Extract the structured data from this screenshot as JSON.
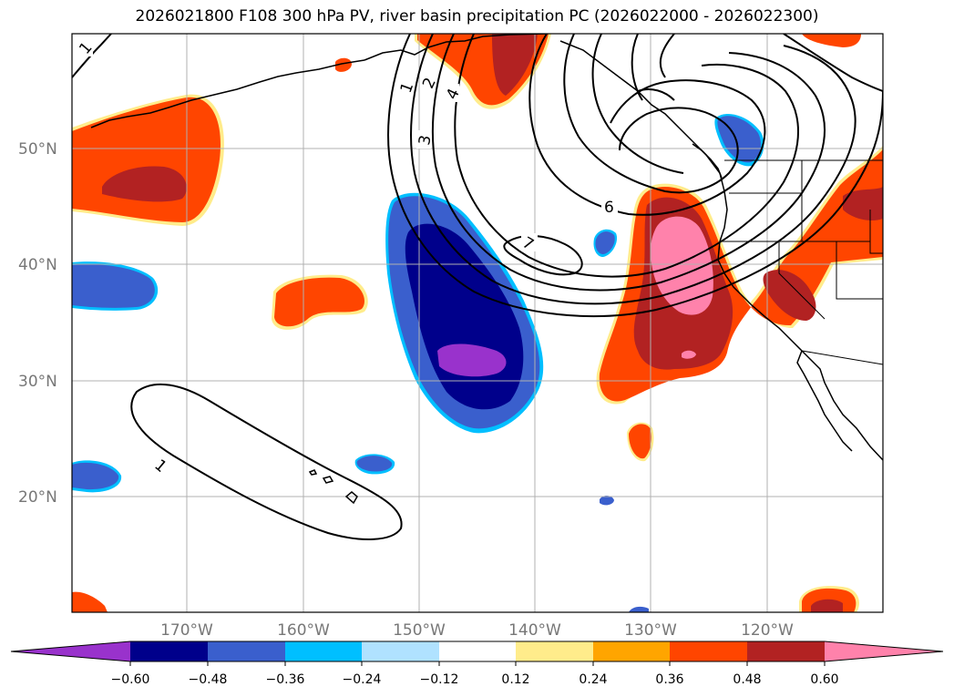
{
  "title": "2026021800 F108 300 hPa PV, river basin precipitation PC (2026022000 - 2026022300)",
  "colors": {
    "v_neg_4": "#9932cc",
    "v_neg_3": "#00008b",
    "v_neg_2": "#3a5fcd",
    "v_neg_1": "#00bfff",
    "v_neg_0": "#b0e2ff",
    "v_0": "#ffffff",
    "v_pos_0": "#ffec8b",
    "v_pos_1": "#ffa500",
    "v_pos_2": "#ff4500",
    "v_pos_3": "#b22222",
    "v_pos_4": "#ff82ab"
  },
  "map": {
    "lat_labels": [
      "50°N",
      "40°N",
      "30°N",
      "20°N"
    ],
    "lon_labels": [
      "170°W",
      "160°W",
      "150°W",
      "140°W",
      "130°W",
      "120°W"
    ],
    "contour_labels": [
      "1",
      "1",
      "1",
      "2",
      "3",
      "4",
      "6",
      "7"
    ]
  },
  "colorbar": {
    "ticks": [
      "−0.60",
      "−0.48",
      "−0.36",
      "−0.24",
      "−0.12",
      "0.12",
      "0.24",
      "0.36",
      "0.48",
      "0.60"
    ]
  }
}
